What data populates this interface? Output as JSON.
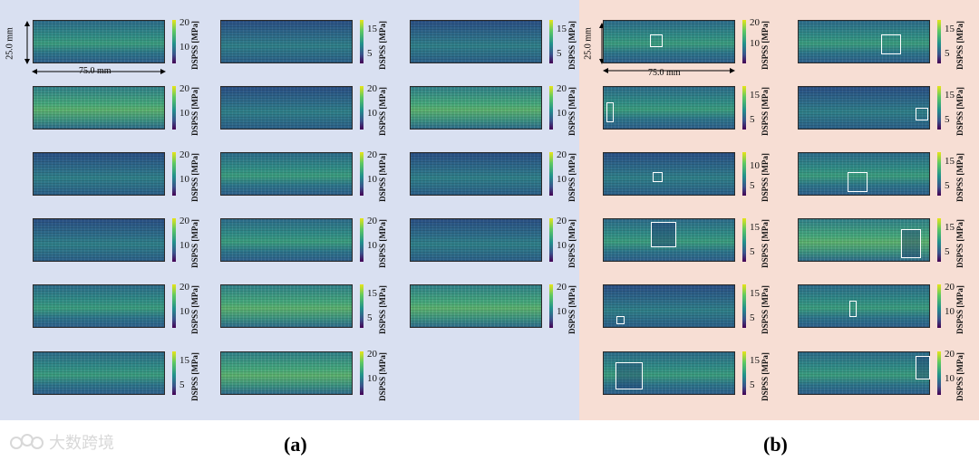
{
  "colorbar_title": "DSPSS [MPa]",
  "captions": {
    "a": "(a)",
    "b": "(b)"
  },
  "scale_bar": {
    "height_label": "25.0 mm",
    "width_label": "75.0 mm"
  },
  "watermark_text": "大数跨境",
  "panel_a": {
    "background": "#d9e0f1",
    "maps": [
      {
        "ticks": [
          "20",
          "10"
        ]
      },
      {
        "ticks": [
          "15",
          "5"
        ]
      },
      {
        "ticks": [
          "15",
          "5"
        ]
      },
      {
        "ticks": [
          "20",
          "10"
        ]
      },
      {
        "ticks": [
          "20",
          "10"
        ]
      },
      {
        "ticks": [
          "20",
          "10"
        ]
      },
      {
        "ticks": [
          "20",
          "10"
        ]
      },
      {
        "ticks": [
          "20",
          "10"
        ]
      },
      {
        "ticks": [
          "20",
          "10"
        ]
      },
      {
        "ticks": [
          "20",
          "10"
        ]
      },
      {
        "ticks": [
          "20",
          "10"
        ]
      },
      {
        "ticks": [
          "20",
          "10"
        ]
      },
      {
        "ticks": [
          "20",
          "10"
        ]
      },
      {
        "ticks": [
          "15",
          "5"
        ]
      },
      {
        "ticks": [
          "20",
          "10"
        ]
      },
      {
        "ticks": [
          "15",
          "5"
        ]
      },
      {
        "ticks": [
          "20",
          "10"
        ]
      }
    ]
  },
  "panel_b": {
    "background": "#f7ded4",
    "maps": [
      {
        "ticks": [
          "20",
          "10"
        ]
      },
      {
        "ticks": [
          "15",
          "5"
        ]
      },
      {
        "ticks": [
          "15",
          "5"
        ]
      },
      {
        "ticks": [
          "15",
          "5"
        ]
      },
      {
        "ticks": [
          "10",
          "5"
        ]
      },
      {
        "ticks": [
          "15",
          "5"
        ]
      },
      {
        "ticks": [
          "15",
          "5"
        ]
      },
      {
        "ticks": [
          "15",
          "5"
        ]
      },
      {
        "ticks": [
          "15",
          "5"
        ]
      },
      {
        "ticks": [
          "20",
          "10"
        ]
      },
      {
        "ticks": [
          "15",
          "5"
        ]
      },
      {
        "ticks": [
          "20",
          "10"
        ]
      }
    ]
  }
}
